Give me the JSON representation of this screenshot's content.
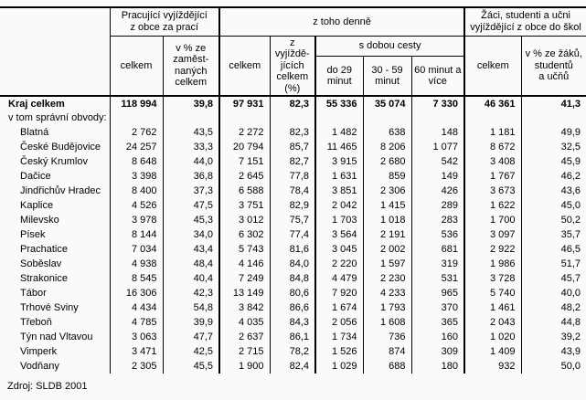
{
  "table": {
    "header": {
      "corner": "",
      "groups": {
        "workers": "Pracující vyjíždějící\nz obce za prací",
        "daily": "z toho denně",
        "students": "Žáci, studenti a učni\nvyjíždějící z obce do škol"
      },
      "cols": {
        "workers_total": "celkem",
        "workers_pct": "v % ze\nzaměst-\nnaných\ncelkem",
        "daily_total": "celkem",
        "daily_pct": "z vyjíždě-\njících\ncelkem\n(%)",
        "travel_time_group": "s dobou cesty",
        "under_29": "do 29\nminut",
        "min_30_59": "30 - 59\nminut",
        "min_60_plus": "60 minut a\nvíce",
        "students_total": "celkem",
        "students_pct": "v % ze žáků,\nstudentů\na učňů"
      }
    },
    "rows": [
      {
        "label": "Kraj celkem",
        "bold": true,
        "indent": false,
        "values": [
          "118 994",
          "39,8",
          "97 931",
          "82,3",
          "55 336",
          "35 074",
          "7 330",
          "46 361",
          "41,3"
        ]
      },
      {
        "label": "v tom správní obvody:",
        "bold": false,
        "indent": false,
        "values": [
          "",
          "",
          "",
          "",
          "",
          "",
          "",
          "",
          ""
        ]
      },
      {
        "label": "Blatná",
        "bold": false,
        "indent": true,
        "values": [
          "2 762",
          "43,5",
          "2 272",
          "82,3",
          "1 482",
          "638",
          "148",
          "1 181",
          "49,9"
        ]
      },
      {
        "label": "České Budějovice",
        "bold": false,
        "indent": true,
        "values": [
          "24 257",
          "33,3",
          "20 794",
          "85,7",
          "11 465",
          "8 206",
          "1 077",
          "8 672",
          "32,5"
        ]
      },
      {
        "label": "Český Krumlov",
        "bold": false,
        "indent": true,
        "values": [
          "8 648",
          "44,0",
          "7 151",
          "82,7",
          "3 915",
          "2 680",
          "542",
          "3 408",
          "45,9"
        ]
      },
      {
        "label": "Dačice",
        "bold": false,
        "indent": true,
        "values": [
          "3 398",
          "36,8",
          "2 645",
          "77,8",
          "1 631",
          "859",
          "149",
          "1 767",
          "46,2"
        ]
      },
      {
        "label": "Jindřichův Hradec",
        "bold": false,
        "indent": true,
        "values": [
          "8 400",
          "37,3",
          "6 588",
          "78,4",
          "3 851",
          "2 306",
          "426",
          "3 673",
          "43,6"
        ]
      },
      {
        "label": "Kaplice",
        "bold": false,
        "indent": true,
        "values": [
          "4 526",
          "47,5",
          "3 751",
          "82,9",
          "2 042",
          "1 415",
          "289",
          "1 622",
          "45,0"
        ]
      },
      {
        "label": "Milevsko",
        "bold": false,
        "indent": true,
        "values": [
          "3 978",
          "45,3",
          "3 012",
          "75,7",
          "1 703",
          "1 018",
          "283",
          "1 700",
          "50,2"
        ]
      },
      {
        "label": "Písek",
        "bold": false,
        "indent": true,
        "values": [
          "8 144",
          "34,0",
          "6 302",
          "77,4",
          "3 564",
          "2 191",
          "536",
          "3 097",
          "35,7"
        ]
      },
      {
        "label": "Prachatice",
        "bold": false,
        "indent": true,
        "values": [
          "7 034",
          "43,4",
          "5 743",
          "81,6",
          "3 045",
          "2 002",
          "681",
          "2 922",
          "46,5"
        ]
      },
      {
        "label": "Soběslav",
        "bold": false,
        "indent": true,
        "values": [
          "4 938",
          "48,4",
          "4 146",
          "84,0",
          "2 220",
          "1 597",
          "319",
          "1 986",
          "51,7"
        ]
      },
      {
        "label": "Strakonice",
        "bold": false,
        "indent": true,
        "values": [
          "8 545",
          "40,4",
          "7 249",
          "84,8",
          "4 479",
          "2 230",
          "531",
          "3 728",
          "45,7"
        ]
      },
      {
        "label": "Tábor",
        "bold": false,
        "indent": true,
        "values": [
          "16 306",
          "42,3",
          "13 149",
          "80,6",
          "7 920",
          "4 233",
          "965",
          "5 740",
          "40,0"
        ]
      },
      {
        "label": "Trhové Sviny",
        "bold": false,
        "indent": true,
        "values": [
          "4 434",
          "54,8",
          "3 842",
          "86,6",
          "1 674",
          "1 793",
          "370",
          "1 461",
          "48,2"
        ]
      },
      {
        "label": "Třeboň",
        "bold": false,
        "indent": true,
        "values": [
          "4 785",
          "39,9",
          "4 035",
          "84,3",
          "2 056",
          "1 608",
          "365",
          "2 043",
          "44,8"
        ]
      },
      {
        "label": "Týn nad Vltavou",
        "bold": false,
        "indent": true,
        "values": [
          "3 063",
          "47,7",
          "2 637",
          "86,1",
          "1 734",
          "736",
          "160",
          "1 020",
          "39,2"
        ]
      },
      {
        "label": "Vimperk",
        "bold": false,
        "indent": true,
        "values": [
          "3 471",
          "42,5",
          "2 715",
          "78,2",
          "1 526",
          "874",
          "309",
          "1 409",
          "43,9"
        ]
      },
      {
        "label": "Vodňany",
        "bold": false,
        "indent": true,
        "values": [
          "2 305",
          "45,5",
          "1 900",
          "82,4",
          "1 029",
          "688",
          "180",
          "932",
          "50,0"
        ]
      }
    ]
  },
  "footer": {
    "source": "Zdroj: SLDB 2001"
  }
}
